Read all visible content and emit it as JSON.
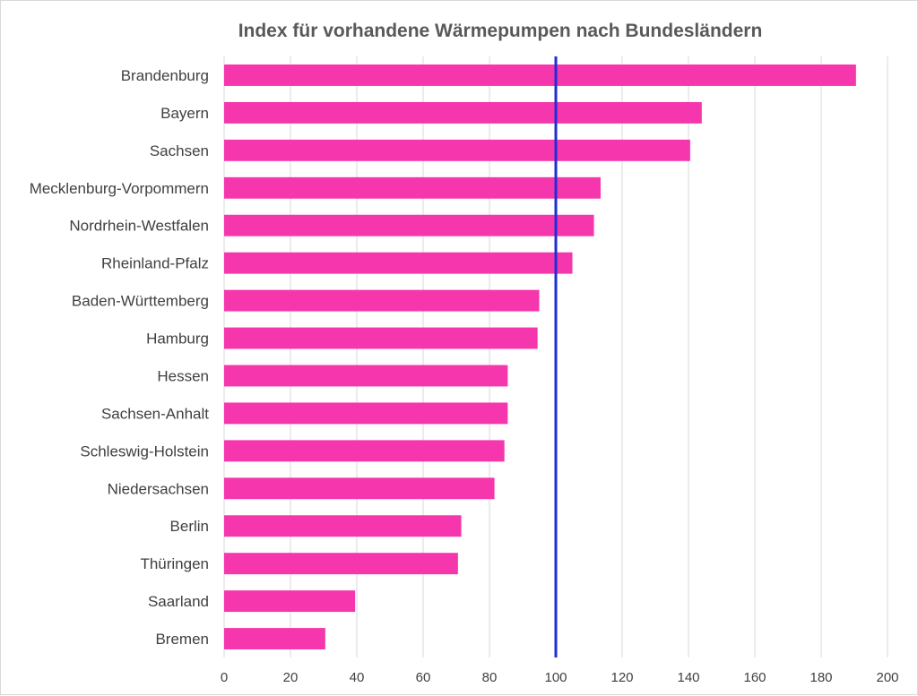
{
  "chart_data": {
    "type": "bar",
    "orientation": "horizontal",
    "title": "Index für vorhandene Wärmepumpen nach Bundesländern",
    "xlabel": "",
    "ylabel": "",
    "categories": [
      "Brandenburg",
      "Bayern",
      "Sachsen",
      "Mecklenburg-Vorpommern",
      "Nordrhein-Westfalen",
      "Rheinland-Pfalz",
      "Baden-Württemberg",
      "Hamburg",
      "Hessen",
      "Sachsen-Anhalt",
      "Schleswig-Holstein",
      "Niedersachsen",
      "Berlin",
      "Thüringen",
      "Saarland",
      "Bremen"
    ],
    "values": [
      190.5,
      144,
      140.5,
      113.5,
      111.5,
      105,
      95,
      94.5,
      85.5,
      85.5,
      84.5,
      81.5,
      71.5,
      70.5,
      39.5,
      30.5
    ],
    "xlim": [
      0,
      200
    ],
    "ticks": [
      0,
      20,
      40,
      60,
      80,
      100,
      120,
      140,
      160,
      180,
      200
    ],
    "grid": true,
    "reference_line": {
      "value": 100,
      "color": "#1f2fd6"
    },
    "bar_color": "#f536ad"
  }
}
